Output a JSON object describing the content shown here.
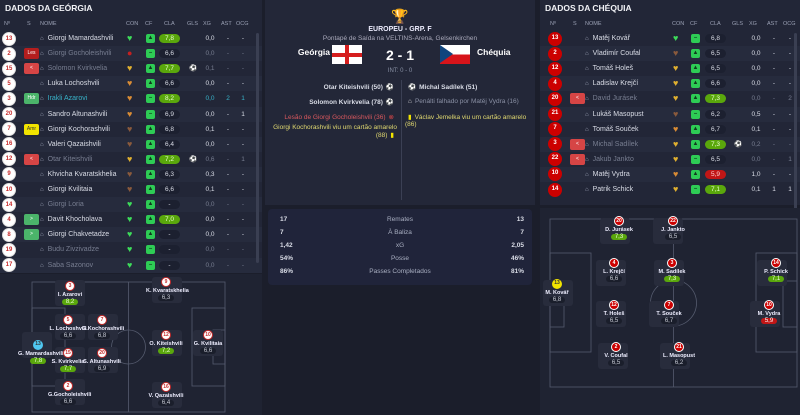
{
  "georgia": {
    "title": "DADOS DA GEÓRGIA",
    "headers": [
      "Nº",
      "S",
      "NOME",
      "CON",
      "CF",
      "CLA",
      "GLS",
      "XG",
      "AST",
      "OCG"
    ],
    "players": [
      {
        "num": "13",
        "sub": "",
        "name": "Giorgi Mamardashvili",
        "con": "green",
        "cf": "thumb",
        "cla": "7,8",
        "cla_style": "green",
        "gls": "",
        "xg": "0,0",
        "ast": "-",
        "ocg": "-",
        "state": ""
      },
      {
        "num": "2",
        "sub": "Les",
        "name": "Giorgi Gocholeishvili",
        "con": "injured",
        "cf": "minus",
        "cla": "6,6",
        "cla_style": "",
        "gls": "",
        "xg": "0,0",
        "ast": "-",
        "ocg": "-",
        "state": "dim"
      },
      {
        "num": "15",
        "sub": "<",
        "name": "Solomon Kvirkvelia",
        "con": "gold",
        "cf": "thumb",
        "cla": "7,7",
        "cla_style": "green",
        "gls": "⚽",
        "xg": "0,1",
        "ast": "-",
        "ocg": "-",
        "state": "dim"
      },
      {
        "num": "5",
        "sub": "",
        "name": "Luka Lochoshvili",
        "con": "orange",
        "cf": "thumb",
        "cla": "6,6",
        "cla_style": "",
        "gls": "",
        "xg": "0,0",
        "ast": "-",
        "ocg": "-",
        "state": ""
      },
      {
        "num": "3",
        "sub": "Hdr",
        "name": "Irakli Azarovi",
        "con": "orange",
        "cf": "minus",
        "cla": "8,2",
        "cla_style": "green",
        "gls": "",
        "xg": "0,0",
        "ast": "2",
        "ocg": "1",
        "state": "teal"
      },
      {
        "num": "20",
        "sub": "",
        "name": "Sandro Altunashvili",
        "con": "orange",
        "cf": "minus",
        "cla": "6,9",
        "cla_style": "",
        "gls": "",
        "xg": "0,0",
        "ast": "-",
        "ocg": "1",
        "state": ""
      },
      {
        "num": "7",
        "sub": "Amr",
        "name": "Giorgi Kochorashvili",
        "con": "brown",
        "cf": "thumb",
        "cla": "6,8",
        "cla_style": "",
        "gls": "",
        "xg": "0,1",
        "ast": "-",
        "ocg": "-",
        "state": ""
      },
      {
        "num": "16",
        "sub": "",
        "name": "Valeri Qazaishvili",
        "con": "brown",
        "cf": "thumb",
        "cla": "6,4",
        "cla_style": "",
        "gls": "",
        "xg": "0,0",
        "ast": "-",
        "ocg": "-",
        "state": ""
      },
      {
        "num": "12",
        "sub": "<",
        "name": "Otar Kiteishvili",
        "con": "gold",
        "cf": "thumb",
        "cla": "7,2",
        "cla_style": "green",
        "gls": "⚽",
        "xg": "0,6",
        "ast": "-",
        "ocg": "1",
        "state": "dim"
      },
      {
        "num": "9",
        "sub": "",
        "name": "Khvicha Kvaratskhelia",
        "con": "brown",
        "cf": "thumb",
        "cla": "6,3",
        "cla_style": "",
        "gls": "",
        "xg": "0,3",
        "ast": "-",
        "ocg": "-",
        "state": ""
      },
      {
        "num": "10",
        "sub": "",
        "name": "Giorgi Kvilitaia",
        "con": "brown",
        "cf": "thumb",
        "cla": "6,6",
        "cla_style": "",
        "gls": "",
        "xg": "0,1",
        "ast": "-",
        "ocg": "-",
        "state": ""
      },
      {
        "num": "14",
        "sub": "",
        "name": "Giorgi Loria",
        "con": "green",
        "cf": "thumb",
        "cla": "-",
        "cla_style": "",
        "gls": "",
        "xg": "0,0",
        "ast": "-",
        "ocg": "-",
        "state": "dim"
      },
      {
        "num": "4",
        "sub": ">",
        "name": "Davit Khocholava",
        "con": "green",
        "cf": "thumb",
        "cla": "7,0",
        "cla_style": "green",
        "gls": "",
        "xg": "0,0",
        "ast": "-",
        "ocg": "-",
        "state": ""
      },
      {
        "num": "8",
        "sub": ">",
        "name": "Giorgi Chakvetadze",
        "con": "green",
        "cf": "thumb",
        "cla": "-",
        "cla_style": "",
        "gls": "",
        "xg": "0,0",
        "ast": "-",
        "ocg": "-",
        "state": ""
      },
      {
        "num": "19",
        "sub": "",
        "name": "Budu Zivzivadze",
        "con": "green",
        "cf": "minus",
        "cla": "-",
        "cla_style": "",
        "gls": "",
        "xg": "0,0",
        "ast": "-",
        "ocg": "-",
        "state": "dim"
      },
      {
        "num": "17",
        "sub": "",
        "name": "Saba Sazonov",
        "con": "green",
        "cf": "minus",
        "cla": "-",
        "cla_style": "",
        "gls": "",
        "xg": "0,0",
        "ast": "-",
        "ocg": "-",
        "state": "dim"
      }
    ],
    "pitch": [
      {
        "num": "3",
        "name": "I. Azarovi",
        "rating": "8,2",
        "style": "green",
        "badge": "white"
      },
      {
        "num": "5",
        "name": "L. Lochoshvili",
        "rating": "6,6",
        "style": "",
        "badge": "white"
      },
      {
        "num": "7",
        "name": "G.Kochorashvili",
        "rating": "6,8",
        "style": "",
        "badge": "white"
      },
      {
        "num": "13",
        "name": "G. Mamardashvili",
        "rating": "7,8",
        "style": "green",
        "badge": "gk"
      },
      {
        "num": "15",
        "name": "S. Kvirkvelia",
        "rating": "7,7",
        "style": "green",
        "badge": "white"
      },
      {
        "num": "20",
        "name": "S. Altunashvili",
        "rating": "6,9",
        "style": "",
        "badge": "white"
      },
      {
        "num": "2",
        "name": "G.Gocholeishvili",
        "rating": "6,6",
        "style": "",
        "badge": "white"
      },
      {
        "num": "9",
        "name": "K. Kvaratskhelia",
        "rating": "6,3",
        "style": "",
        "badge": "white"
      },
      {
        "num": "12",
        "name": "O. Kiteishvili",
        "rating": "7,2",
        "style": "green",
        "badge": "white"
      },
      {
        "num": "10",
        "name": "G. Kvilitaia",
        "rating": "6,6",
        "style": "",
        "badge": "white"
      },
      {
        "num": "16",
        "name": "V. Qazaishvili",
        "rating": "6,4",
        "style": "",
        "badge": "white"
      }
    ]
  },
  "czechia": {
    "title": "DADOS DA CHÉQUIA",
    "headers": [
      "Nº",
      "S",
      "NOME",
      "CON",
      "CF",
      "CLA",
      "GLS",
      "XG",
      "AST",
      "OCG"
    ],
    "players": [
      {
        "num": "13",
        "sub": "",
        "name": "Matěj Kovář",
        "con": "green",
        "cf": "minus",
        "cla": "6,8",
        "cla_style": "",
        "gls": "",
        "xg": "0,0",
        "ast": "-",
        "ocg": "-",
        "state": ""
      },
      {
        "num": "2",
        "sub": "",
        "name": "Vladimír Coufal",
        "con": "brown",
        "cf": "thumb",
        "cla": "6,5",
        "cla_style": "",
        "gls": "",
        "xg": "0,0",
        "ast": "-",
        "ocg": "-",
        "state": ""
      },
      {
        "num": "12",
        "sub": "",
        "name": "Tomáš Holeš",
        "con": "gold",
        "cf": "thumb",
        "cla": "6,5",
        "cla_style": "",
        "gls": "",
        "xg": "0,0",
        "ast": "-",
        "ocg": "-",
        "state": ""
      },
      {
        "num": "4",
        "sub": "",
        "name": "Ladislav Krejčí",
        "con": "gold",
        "cf": "thumb",
        "cla": "6,6",
        "cla_style": "",
        "gls": "",
        "xg": "0,0",
        "ast": "-",
        "ocg": "-",
        "state": ""
      },
      {
        "num": "20",
        "sub": "<",
        "name": "David Jurásek",
        "con": "gold",
        "cf": "thumb",
        "cla": "7,3",
        "cla_style": "green",
        "gls": "",
        "xg": "0,0",
        "ast": "-",
        "ocg": "2",
        "state": "dim"
      },
      {
        "num": "21",
        "sub": "",
        "name": "Lukáš Masopust",
        "con": "brown",
        "cf": "minus",
        "cla": "6,2",
        "cla_style": "",
        "gls": "",
        "xg": "0,5",
        "ast": "-",
        "ocg": "-",
        "state": ""
      },
      {
        "num": "7",
        "sub": "",
        "name": "Tomáš Souček",
        "con": "orange",
        "cf": "thumb",
        "cla": "6,7",
        "cla_style": "",
        "gls": "",
        "xg": "0,1",
        "ast": "-",
        "ocg": "-",
        "state": ""
      },
      {
        "num": "3",
        "sub": "<",
        "name": "Michal Sadílek",
        "con": "gold",
        "cf": "thumb",
        "cla": "7,3",
        "cla_style": "green",
        "gls": "⚽",
        "xg": "0,2",
        "ast": "-",
        "ocg": "-",
        "state": "dim"
      },
      {
        "num": "22",
        "sub": "<",
        "name": "Jakub Jankto",
        "con": "gold",
        "cf": "minus",
        "cla": "6,5",
        "cla_style": "",
        "gls": "",
        "xg": "0,0",
        "ast": "-",
        "ocg": "1",
        "state": "dim"
      },
      {
        "num": "10",
        "sub": "",
        "name": "Matěj Vydra",
        "con": "orange",
        "cf": "thumb",
        "cla": "5,9",
        "cla_style": "red",
        "gls": "",
        "xg": "1,0",
        "ast": "-",
        "ocg": "-",
        "state": ""
      },
      {
        "num": "14",
        "sub": "",
        "name": "Patrik Schick",
        "con": "gold",
        "cf": "minus",
        "cla": "7,1",
        "cla_style": "green",
        "gls": "",
        "xg": "0,1",
        "ast": "1",
        "ocg": "1",
        "state": ""
      }
    ],
    "pitch": [
      {
        "num": "20",
        "name": "D. Jurásek",
        "rating": "7,3",
        "style": "green",
        "badge": "red"
      },
      {
        "num": "22",
        "name": "J. Jankto",
        "rating": "6,5",
        "style": "",
        "badge": "red"
      },
      {
        "num": "4",
        "name": "L. Krejčí",
        "rating": "6,6",
        "style": "",
        "badge": "red"
      },
      {
        "num": "3",
        "name": "M. Sadílek",
        "rating": "7,3",
        "style": "green",
        "badge": "red"
      },
      {
        "num": "13",
        "name": "M. Kovář",
        "rating": "6,8",
        "style": "",
        "badge": "gk"
      },
      {
        "num": "12",
        "name": "T. Holeš",
        "rating": "6,5",
        "style": "",
        "badge": "red"
      },
      {
        "num": "7",
        "name": "T. Souček",
        "rating": "6,7",
        "style": "",
        "badge": "red"
      },
      {
        "num": "2",
        "name": "V. Coufal",
        "rating": "6,5",
        "style": "",
        "badge": "red"
      },
      {
        "num": "21",
        "name": "L. Masopust",
        "rating": "6,2",
        "style": "",
        "badge": "red"
      },
      {
        "num": "14",
        "name": "P. Schick",
        "rating": "7,1",
        "style": "green",
        "badge": "red"
      },
      {
        "num": "10",
        "name": "M. Vydra",
        "rating": "5,9",
        "style": "red",
        "badge": "red"
      }
    ]
  },
  "match": {
    "competition": "EUROPEU - GRP. F",
    "venue": "Pontapé de Saída na VELTINS-Arena, Gelsenkirchen",
    "home": "Geórgia",
    "away": "Chéquia",
    "score": "2 - 1",
    "halftime": "INT: 0 - 0",
    "home_events": [
      {
        "text": "Otar Kiteishvili (50)",
        "type": "goal"
      },
      {
        "text": "Solomon Kvirkvelia (78)",
        "type": "goal"
      },
      {
        "text": "Lesão de Giorgi Gocholeishvili (36)",
        "type": "injury"
      },
      {
        "text": "Giorgi Kochorashvili viu um cartão amarelo (88)",
        "type": "yellow"
      }
    ],
    "away_events": [
      {
        "text": "Michal Sadílek (51)",
        "type": "goal"
      },
      {
        "text": "Penálti falhado por Matěj Vydra (16)",
        "type": "penalty-miss"
      },
      {
        "text": "Václav Jemelka viu um cartão amarelo (86)",
        "type": "yellow"
      }
    ],
    "stats": [
      {
        "label": "Remates",
        "home": "17",
        "away": "13"
      },
      {
        "label": "À Baliza",
        "home": "7",
        "away": "7"
      },
      {
        "label": "xG",
        "home": "1,42",
        "away": "2,05"
      },
      {
        "label": "Posse",
        "home": "54%",
        "away": "46%"
      },
      {
        "label": "Passes Completados",
        "home": "86%",
        "away": "81%"
      }
    ]
  },
  "colors": {
    "green": "#5aa70c",
    "red": "#c11616",
    "yellow": "#f2e400",
    "accent_teal": "#38b2c8"
  }
}
